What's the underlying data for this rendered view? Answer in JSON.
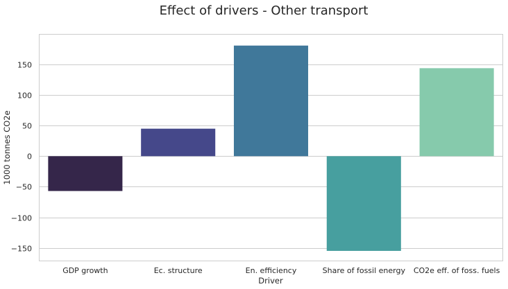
{
  "chart_data": {
    "type": "bar",
    "title": "Effect of drivers - Other transport",
    "xlabel": "Driver",
    "ylabel": "1000 tonnes CO2e",
    "categories": [
      "GDP growth",
      "Ec. structure",
      "En. efficiency",
      "Share of fossil energy",
      "CO2e eff. of foss. fuels"
    ],
    "values": [
      -57,
      45,
      181,
      -155,
      144
    ],
    "bar_colors": [
      "#35264a",
      "#45488a",
      "#40789a",
      "#479f9f",
      "#86caac"
    ],
    "ylim": [
      -172,
      200
    ],
    "yticks": [
      -150,
      -100,
      -50,
      0,
      50,
      100,
      150
    ],
    "ytick_labels": [
      "−150",
      "−100",
      "−50",
      "0",
      "50",
      "100",
      "150"
    ],
    "grid": "horizontal",
    "grid_color": "#cccccc",
    "frame_color": "#cccccc"
  }
}
